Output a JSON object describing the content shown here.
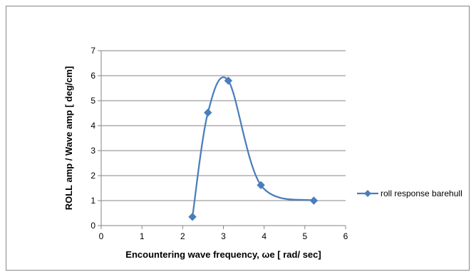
{
  "chart_data": {
    "type": "scatter",
    "xlabel": "Encountering wave  frequency, ωe [ rad/ sec]",
    "ylabel": "ROLL amp / Wave amp [ deg/cm]",
    "xlim": [
      0,
      6
    ],
    "ylim": [
      0,
      7
    ],
    "xticks": [
      "0",
      "1",
      "2",
      "3",
      "4",
      "5",
      "6"
    ],
    "yticks": [
      "0",
      "1",
      "2",
      "3",
      "4",
      "5",
      "6",
      "7"
    ],
    "grid": "horizontal",
    "legend_position": "right",
    "smooth": true,
    "marker": "diamond",
    "series": [
      {
        "name": "roll response barehull",
        "color": "#4a7ebb",
        "x": [
          2.24,
          2.62,
          3.12,
          3.92,
          5.22
        ],
        "y": [
          0.35,
          4.52,
          5.8,
          1.62,
          1.0
        ]
      }
    ]
  }
}
